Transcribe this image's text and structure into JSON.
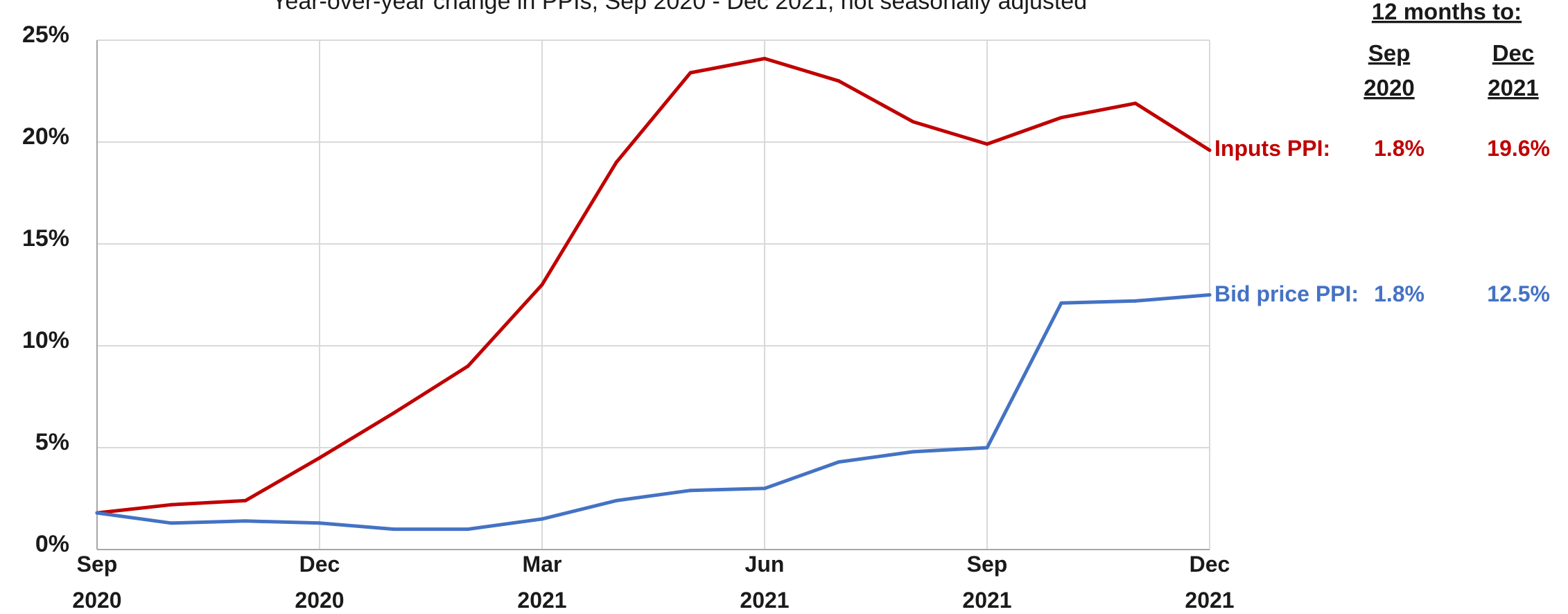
{
  "chart_data": {
    "type": "line",
    "subtitle": "Year-over-year change in PPIs, Sep 2020 - Dec 2021, not seasonally adjusted",
    "x": [
      "Sep 2020",
      "Oct 2020",
      "Nov 2020",
      "Dec 2020",
      "Jan 2021",
      "Feb 2021",
      "Mar 2021",
      "Apr 2021",
      "May 2021",
      "Jun 2021",
      "Jul 2021",
      "Aug 2021",
      "Sep 2021",
      "Oct 2021",
      "Nov 2021",
      "Dec 2021"
    ],
    "x_tick_labels": [
      {
        "month": "Sep",
        "year": "2020",
        "index": 0
      },
      {
        "month": "Dec",
        "year": "2020",
        "index": 3
      },
      {
        "month": "Mar",
        "year": "2021",
        "index": 6
      },
      {
        "month": "Jun",
        "year": "2021",
        "index": 9
      },
      {
        "month": "Sep",
        "year": "2021",
        "index": 12
      },
      {
        "month": "Dec",
        "year": "2021",
        "index": 15
      }
    ],
    "y_ticks": [
      {
        "value": 0,
        "label": "0%"
      },
      {
        "value": 5,
        "label": "5%"
      },
      {
        "value": 10,
        "label": "10%"
      },
      {
        "value": 15,
        "label": "15%"
      },
      {
        "value": 20,
        "label": "20%"
      },
      {
        "value": 25,
        "label": "25%"
      }
    ],
    "ylim": [
      0,
      25
    ],
    "grid": "vertical and horizontal",
    "series": [
      {
        "name": "Inputs PPI",
        "color": "#c00000",
        "values": [
          1.8,
          2.2,
          2.4,
          4.5,
          6.7,
          9.0,
          13.0,
          19.0,
          23.4,
          24.1,
          23.0,
          21.0,
          19.9,
          21.2,
          21.9,
          19.6
        ]
      },
      {
        "name": "Bid price PPI",
        "color": "#4472c4",
        "values": [
          1.8,
          1.3,
          1.4,
          1.3,
          1.0,
          1.0,
          1.5,
          2.4,
          2.9,
          3.0,
          4.3,
          4.8,
          5.0,
          12.1,
          12.2,
          12.5
        ]
      }
    ],
    "table": {
      "header": "12 months to:",
      "columns": [
        {
          "line1": "Sep",
          "line2": "2020"
        },
        {
          "line1": "Dec",
          "line2": "2021"
        }
      ],
      "rows": [
        {
          "label": "Inputs PPI:",
          "color": "#c00000",
          "values": [
            "1.8%",
            "19.6%"
          ]
        },
        {
          "label": "Bid price PPI:",
          "color": "#4472c4",
          "values": [
            "1.8%",
            "12.5%"
          ]
        }
      ]
    }
  }
}
